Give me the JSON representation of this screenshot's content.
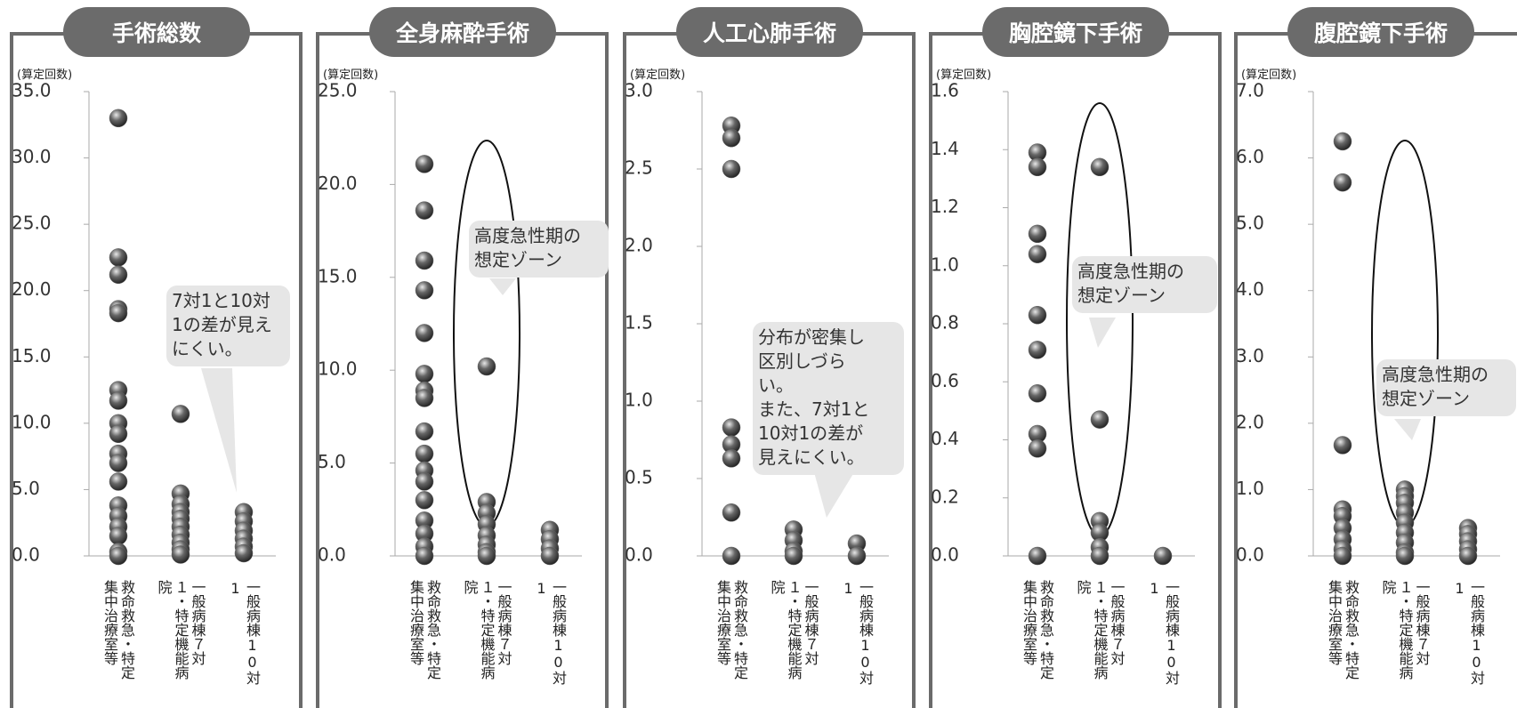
{
  "chart_data": [
    {
      "type": "strip",
      "title": "手術総数",
      "y_label": "(算定回数)",
      "color": "#666666",
      "categories": [
        "救命救急・特定集中治療室等",
        "一般病棟７対１・特定機能病院",
        "一般病棟10対1"
      ],
      "values": [
        [
          33,
          22.5,
          21.2,
          18.6,
          18.3,
          12.5,
          11.7,
          10,
          9.2,
          7.7,
          7,
          5.6,
          3.8,
          3,
          2.2,
          1.5,
          0.3,
          0
        ],
        [
          10.7,
          4.7,
          3.9,
          3.3,
          2.8,
          2.2,
          1.6,
          1,
          0.5,
          0.1
        ],
        [
          3.3,
          2.6,
          1.9,
          1.3,
          0.7,
          0.2
        ]
      ],
      "ylim": [
        0,
        35
      ],
      "yticks": [
        {
          "value": 0,
          "label": "0.0"
        },
        {
          "value": 5,
          "label": "5.0"
        },
        {
          "value": 10,
          "label": "10.0"
        },
        {
          "value": 15,
          "label": "15.0"
        },
        {
          "value": 20,
          "label": "20.0"
        },
        {
          "value": 25,
          "label": "25.0"
        },
        {
          "value": 30,
          "label": "30.0"
        },
        {
          "value": 35,
          "label": "35.0"
        }
      ],
      "annotation": [
        "7対1と10対",
        "1の差が見え",
        "にくい。"
      ]
    },
    {
      "type": "strip",
      "title": "全身麻酔手術",
      "y_label": "(算定回数)",
      "color": "#666666",
      "categories": [
        "救命救急・特定集中治療室等",
        "一般病棟７対１・特定機能病院",
        "一般病棟10対1"
      ],
      "values": [
        [
          21.1,
          18.6,
          15.9,
          14.3,
          12,
          9.8,
          8.9,
          8.5,
          6.7,
          5.5,
          4.6,
          4,
          3,
          1.9,
          1.2,
          0.5,
          0
        ],
        [
          10.2,
          2.9,
          2.3,
          1.7,
          1.1,
          0.6,
          0.2,
          0
        ],
        [
          1.4,
          0.9,
          0.4,
          0
        ]
      ],
      "ylim": [
        0,
        25
      ],
      "yticks": [
        {
          "value": 0,
          "label": "0.0"
        },
        {
          "value": 5,
          "label": "5.0"
        },
        {
          "value": 10,
          "label": "10.0"
        },
        {
          "value": 15,
          "label": "15.0"
        },
        {
          "value": 20,
          "label": "20.0"
        },
        {
          "value": 25,
          "label": "25.0"
        }
      ],
      "annotation": [
        "高度急性期の",
        "想定ゾーン"
      ]
    },
    {
      "type": "strip",
      "title": "人工心肺手術",
      "y_label": "(算定回数)",
      "color": "#666666",
      "categories": [
        "救命救急・特定集中治療室等",
        "一般病棟７対１・特定機能病院",
        "一般病棟10対1"
      ],
      "values": [
        [
          2.78,
          2.7,
          2.5,
          0.83,
          0.72,
          0.63,
          0.28,
          0
        ],
        [
          0.17,
          0.1,
          0.03,
          0
        ],
        [
          0.08,
          0
        ]
      ],
      "ylim": [
        0,
        3
      ],
      "yticks": [
        {
          "value": 0,
          "label": "0.0"
        },
        {
          "value": 0.5,
          "label": "0.5"
        },
        {
          "value": 1,
          "label": "1.0"
        },
        {
          "value": 1.5,
          "label": "1.5"
        },
        {
          "value": 2,
          "label": "2.0"
        },
        {
          "value": 2.5,
          "label": "2.5"
        },
        {
          "value": 3,
          "label": "3.0"
        }
      ],
      "annotation": [
        "分布が密集し",
        "区別しづら",
        "い。",
        "また、7対1と",
        "10対1の差が",
        "見えにくい。"
      ]
    },
    {
      "type": "strip",
      "title": "胸腔鏡下手術",
      "y_label": "(算定回数)",
      "color": "#666666",
      "categories": [
        "救命救急・特定集中治療室等",
        "一般病棟７対１・特定機能病院",
        "一般病棟10対1"
      ],
      "values": [
        [
          1.39,
          1.34,
          1.11,
          1.04,
          0.83,
          0.71,
          0.56,
          0.42,
          0.37,
          0
        ],
        [
          1.34,
          0.47,
          0.12,
          0.08,
          0.03,
          0
        ],
        [
          0
        ]
      ],
      "ylim": [
        0,
        1.6
      ],
      "yticks": [
        {
          "value": 0,
          "label": "0.0"
        },
        {
          "value": 0.2,
          "label": "0.2"
        },
        {
          "value": 0.4,
          "label": "0.4"
        },
        {
          "value": 0.6,
          "label": "0.6"
        },
        {
          "value": 0.8,
          "label": "0.8"
        },
        {
          "value": 1,
          "label": "1.0"
        },
        {
          "value": 1.2,
          "label": "1.2"
        },
        {
          "value": 1.4,
          "label": "1.4"
        },
        {
          "value": 1.6,
          "label": "1.6"
        }
      ],
      "annotation": [
        "高度急性期の",
        "想定ゾーン"
      ]
    },
    {
      "type": "strip",
      "title": "腹腔鏡下手術",
      "y_label": "(算定回数)",
      "color": "#666666",
      "categories": [
        "救命救急・特定集中治療室等",
        "一般病棟７対１・特定機能病院",
        "一般病棟10対1"
      ],
      "values": [
        [
          6.25,
          5.63,
          1.67,
          0.7,
          0.6,
          0.42,
          0.25,
          0.1,
          0
        ],
        [
          1,
          0.9,
          0.8,
          0.65,
          0.5,
          0.35,
          0.2,
          0.05,
          0
        ],
        [
          0.42,
          0.33,
          0.22,
          0.1,
          0
        ]
      ],
      "ylim": [
        0,
        7
      ],
      "yticks": [
        {
          "value": 0,
          "label": "0.0"
        },
        {
          "value": 1,
          "label": "1.0"
        },
        {
          "value": 2,
          "label": "2.0"
        },
        {
          "value": 3,
          "label": "3.0"
        },
        {
          "value": 4,
          "label": "4.0"
        },
        {
          "value": 5,
          "label": "5.0"
        },
        {
          "value": 6,
          "label": "6.0"
        },
        {
          "value": 7,
          "label": "7.0"
        }
      ],
      "annotation": [
        "高度急性期の",
        "想定ゾーン"
      ]
    }
  ]
}
